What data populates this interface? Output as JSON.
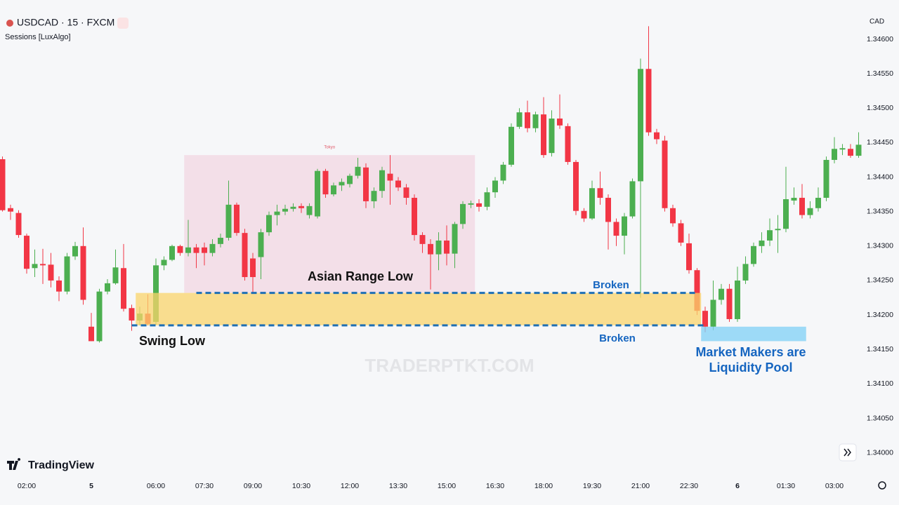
{
  "chart_data": {
    "type": "candlestick",
    "title": "USDCAD · 15 · FXCM",
    "subtitle": "Sessions [LuxAlgo]",
    "currency": "CAD",
    "brand": "TradingView",
    "watermark": "TRADERPTKT.COM",
    "up_color": "#4caf50",
    "down_color": "#f23645",
    "grid": false,
    "ylim": [
      1.33965,
      1.34657
    ],
    "yticks": [
      {
        "value": 1.34,
        "label": "1.34000"
      },
      {
        "value": 1.3405,
        "label": "1.34050"
      },
      {
        "value": 1.341,
        "label": "1.34100"
      },
      {
        "value": 1.3415,
        "label": "1.34150"
      },
      {
        "value": 1.342,
        "label": "1.34200"
      },
      {
        "value": 1.3425,
        "label": "1.34250"
      },
      {
        "value": 1.343,
        "label": "1.34300"
      },
      {
        "value": 1.3435,
        "label": "1.34350"
      },
      {
        "value": 1.344,
        "label": "1.34400"
      },
      {
        "value": 1.3445,
        "label": "1.34450"
      },
      {
        "value": 1.345,
        "label": "1.34500"
      },
      {
        "value": 1.3455,
        "label": "1.34550"
      },
      {
        "value": 1.346,
        "label": "1.34600"
      }
    ],
    "categories": [
      null,
      null,
      null,
      "02:00",
      null,
      null,
      null,
      null,
      null,
      null,
      null,
      "5",
      null,
      null,
      null,
      null,
      null,
      null,
      null,
      "06:00",
      null,
      null,
      null,
      null,
      null,
      "07:30",
      null,
      null,
      null,
      null,
      null,
      "09:00",
      null,
      null,
      null,
      null,
      null,
      "10:30",
      null,
      null,
      null,
      null,
      null,
      "12:00",
      null,
      null,
      null,
      null,
      null,
      "13:30",
      null,
      null,
      null,
      null,
      null,
      "15:00",
      null,
      null,
      null,
      null,
      null,
      "16:30",
      null,
      null,
      null,
      null,
      null,
      "18:00",
      null,
      null,
      null,
      null,
      null,
      "19:30",
      null,
      null,
      null,
      null,
      null,
      "21:00",
      null,
      null,
      null,
      null,
      null,
      "22:30",
      null,
      null,
      null,
      null,
      null,
      "6",
      null,
      null,
      null,
      null,
      null,
      "01:30",
      null,
      null,
      null,
      null,
      null,
      "03:00",
      null,
      null,
      null
    ],
    "open": [
      1.34426,
      1.34355,
      1.34348,
      1.34315,
      1.34268,
      1.34274,
      1.34273,
      1.3425,
      1.34234,
      1.34285,
      1.343,
      1.34183,
      1.34162,
      1.34234,
      1.34246,
      1.34268,
      1.3421,
      1.34192,
      1.34202,
      1.3419,
      1.34272,
      1.3428,
      1.343,
      1.3429,
      1.34298,
      1.34298,
      1.3429,
      1.34303,
      1.34312,
      1.3436,
      1.34319,
      1.34282,
      1.34284,
      1.3432,
      1.34345,
      1.3435,
      1.34354,
      1.34358,
      1.34345,
      1.34343,
      1.34409,
      1.34375,
      1.34388,
      1.3439,
      1.34402,
      1.34414,
      1.34365,
      1.3438,
      1.34405,
      1.34395,
      1.34385,
      1.3437,
      1.34316,
      1.34303,
      1.34288,
      1.34308,
      1.34289,
      1.34332,
      1.3436,
      1.34362,
      1.34357,
      1.34378,
      1.34395,
      1.34418,
      1.34473,
      1.34494,
      1.34471,
      1.34491,
      1.34435,
      1.34485,
      1.34474,
      1.34422,
      1.34351,
      1.3434,
      1.34384,
      1.3437,
      1.34335,
      1.34315,
      1.34343,
      1.34394,
      1.34557,
      1.34465,
      1.34453,
      1.34355,
      1.34333,
      1.34304,
      1.34265,
      1.34206,
      1.34183,
      1.34222,
      1.34238,
      1.34194,
      1.3425,
      1.34274,
      1.343,
      1.34308,
      1.34323,
      1.34325,
      1.34366,
      1.3437,
      1.34345,
      1.34355,
      1.3437,
      1.34425,
      1.3444,
      1.34441,
      1.34431
    ],
    "high": [
      1.3443,
      1.3436,
      1.34352,
      1.34318,
      1.34295,
      1.34296,
      1.3429,
      1.34256,
      1.3429,
      1.34306,
      1.34327,
      1.34203,
      1.34238,
      1.34252,
      1.34295,
      1.34303,
      1.34215,
      1.34212,
      1.3423,
      1.34282,
      1.34285,
      1.34302,
      1.34302,
      1.34338,
      1.34303,
      1.34305,
      1.3431,
      1.34318,
      1.34395,
      1.34363,
      1.34325,
      1.3429,
      1.34325,
      1.3435,
      1.3436,
      1.3436,
      1.34362,
      1.34362,
      1.34362,
      1.34412,
      1.34412,
      1.34392,
      1.34398,
      1.34405,
      1.34428,
      1.3442,
      1.34385,
      1.34415,
      1.34432,
      1.344,
      1.3439,
      1.34375,
      1.3432,
      1.3431,
      1.3432,
      1.3433,
      1.34335,
      1.34365,
      1.34366,
      1.34368,
      1.34385,
      1.344,
      1.34422,
      1.34478,
      1.345,
      1.34511,
      1.34495,
      1.34516,
      1.34497,
      1.3452,
      1.34478,
      1.34425,
      1.34355,
      1.34395,
      1.34408,
      1.34375,
      1.3434,
      1.34348,
      1.34398,
      1.34572,
      1.34619,
      1.3447,
      1.3446,
      1.3436,
      1.34338,
      1.34318,
      1.34268,
      1.34212,
      1.3425,
      1.34245,
      1.34245,
      1.3427,
      1.34285,
      1.34305,
      1.3432,
      1.3434,
      1.34345,
      1.34415,
      1.34385,
      1.3439,
      1.34365,
      1.34385,
      1.3443,
      1.34458,
      1.34448,
      1.34448,
      1.34465
    ],
    "low": [
      1.3435,
      1.34338,
      1.34312,
      1.3426,
      1.34255,
      1.34245,
      1.3424,
      1.3422,
      1.3423,
      1.3428,
      1.34215,
      1.34162,
      1.3416,
      1.3423,
      1.34244,
      1.34205,
      1.34177,
      1.34185,
      1.34185,
      1.34186,
      1.34265,
      1.34278,
      1.34286,
      1.34285,
      1.34268,
      1.34272,
      1.34285,
      1.34298,
      1.34308,
      1.34315,
      1.3425,
      1.34232,
      1.34252,
      1.34315,
      1.3433,
      1.34345,
      1.3435,
      1.34348,
      1.3434,
      1.3434,
      1.3437,
      1.34372,
      1.3438,
      1.34385,
      1.34398,
      1.34355,
      1.34355,
      1.3437,
      1.3436,
      1.3438,
      1.3436,
      1.34308,
      1.3429,
      1.34237,
      1.34265,
      1.34272,
      1.34268,
      1.34325,
      1.34355,
      1.3435,
      1.34352,
      1.3437,
      1.3439,
      1.34415,
      1.3447,
      1.34465,
      1.34465,
      1.34428,
      1.3443,
      1.3447,
      1.34418,
      1.34345,
      1.34335,
      1.34338,
      1.3436,
      1.34295,
      1.343,
      1.34288,
      1.3434,
      1.34225,
      1.3446,
      1.34448,
      1.3435,
      1.34328,
      1.343,
      1.3426,
      1.342,
      1.34175,
      1.34178,
      1.34215,
      1.3419,
      1.3419,
      1.34245,
      1.3427,
      1.3429,
      1.343,
      1.3429,
      1.3432,
      1.3436,
      1.3434,
      1.3434,
      1.3435,
      1.34365,
      1.3442,
      1.34432,
      1.34428,
      1.34428
    ],
    "close": [
      1.34352,
      1.3435,
      1.34316,
      1.34267,
      1.34274,
      1.34272,
      1.3425,
      1.34234,
      1.34285,
      1.343,
      1.34222,
      1.34162,
      1.34234,
      1.34246,
      1.34269,
      1.34209,
      1.34192,
      1.34202,
      1.34187,
      1.34272,
      1.3428,
      1.343,
      1.3429,
      1.34298,
      1.3429,
      1.3429,
      1.34303,
      1.34312,
      1.3436,
      1.34319,
      1.34255,
      1.34255,
      1.3432,
      1.34345,
      1.3435,
      1.34354,
      1.34357,
      1.34355,
      1.34358,
      1.34409,
      1.34375,
      1.34388,
      1.34393,
      1.34402,
      1.34415,
      1.34365,
      1.3438,
      1.3441,
      1.34395,
      1.34385,
      1.3437,
      1.34316,
      1.34303,
      1.34288,
      1.34308,
      1.34289,
      1.34332,
      1.34361,
      1.34362,
      1.34357,
      1.34378,
      1.34395,
      1.34418,
      1.34473,
      1.34494,
      1.34471,
      1.34491,
      1.34432,
      1.34485,
      1.34475,
      1.34422,
      1.34351,
      1.3434,
      1.34384,
      1.3437,
      1.34335,
      1.34315,
      1.34343,
      1.34394,
      1.34557,
      1.34465,
      1.34455,
      1.34355,
      1.34333,
      1.34305,
      1.34265,
      1.34206,
      1.34183,
      1.34222,
      1.34238,
      1.34194,
      1.3425,
      1.34274,
      1.343,
      1.34308,
      1.34323,
      1.34325,
      1.34368,
      1.3437,
      1.34345,
      1.34355,
      1.3437,
      1.34425,
      1.34441,
      1.34442,
      1.34431,
      1.34447
    ],
    "zones": [
      {
        "label": "Tokyo",
        "from": 23,
        "to": 58,
        "top": 1.34432,
        "bottom": 1.34232,
        "color": "#f3dce6",
        "layer": "back"
      },
      {
        "from": 17,
        "to": 86,
        "top": 1.34232,
        "bottom": 1.34185,
        "color": "#f9d46b",
        "layer": "front"
      },
      {
        "from": 87,
        "to": 99,
        "top": 1.34183,
        "bottom": 1.34162,
        "color": "#7fd0f5",
        "layer": "front"
      }
    ],
    "levels": [
      {
        "value": 1.34232,
        "from": 24,
        "to": 86,
        "color": "#1e6fb5"
      },
      {
        "value": 1.34185,
        "from": 16,
        "to": 87,
        "color": "#1e6fb5"
      }
    ],
    "annotations": [
      "Asian Range Low",
      "Swing Low",
      "Broken",
      "Broken",
      "Market Makers are",
      "Liquidity Pool"
    ]
  }
}
